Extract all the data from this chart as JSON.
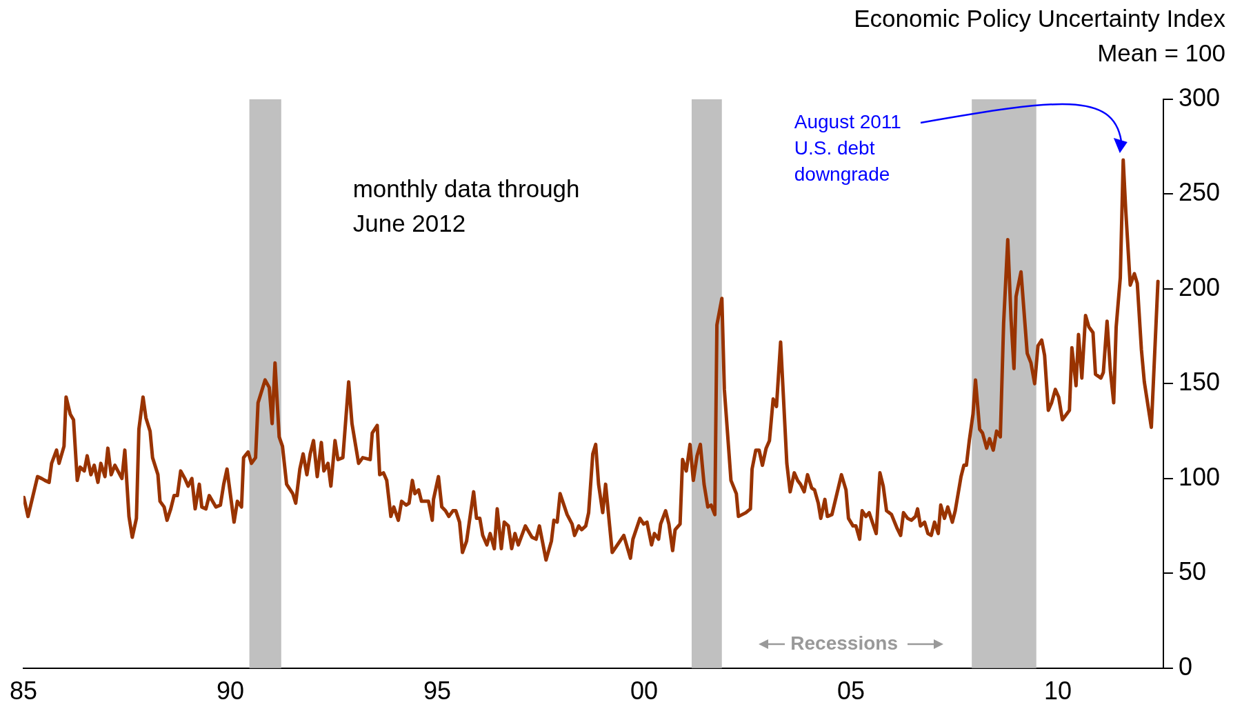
{
  "chart_data": {
    "type": "line",
    "title": "Economic Policy Uncertainty Index",
    "subtitle": "Mean = 100",
    "x": [
      1985.01,
      1985.11,
      1985.34,
      1985.44,
      1985.52,
      1985.62,
      1985.68,
      1985.8,
      1985.86,
      1985.98,
      1986.03,
      1986.13,
      1986.21,
      1986.3,
      1986.37,
      1986.47,
      1986.54,
      1986.63,
      1986.71,
      1986.8,
      1986.87,
      1986.97,
      1987.04,
      1987.12,
      1987.21,
      1987.38,
      1987.45,
      1987.55,
      1987.63,
      1987.73,
      1987.79,
      1987.89,
      1987.96,
      1988.06,
      1988.12,
      1988.25,
      1988.3,
      1988.4,
      1988.47,
      1988.56,
      1988.64,
      1988.72,
      1988.8,
      1988.9,
      1988.98,
      1989.07,
      1989.15,
      1989.25,
      1989.31,
      1989.41,
      1989.49,
      1989.65,
      1989.76,
      1989.84,
      1989.92,
      1990.09,
      1990.17,
      1990.27,
      1990.32,
      1990.43,
      1990.51,
      1990.61,
      1990.67,
      1990.84,
      1990.94,
      1991.01,
      1991.08,
      1991.18,
      1991.26,
      1991.36,
      1991.42,
      1991.51,
      1991.58,
      1991.68,
      1991.76,
      1991.85,
      1991.93,
      1992.01,
      1992.1,
      1992.2,
      1992.26,
      1992.36,
      1992.43,
      1992.53,
      1992.6,
      1992.72,
      1992.86,
      1992.94,
      1993.1,
      1993.2,
      1993.38,
      1993.43,
      1993.55,
      1993.61,
      1993.7,
      1993.78,
      1993.88,
      1993.95,
      1994.06,
      1994.14,
      1994.25,
      1994.32,
      1994.4,
      1994.46,
      1994.55,
      1994.62,
      1994.79,
      1994.88,
      1994.91,
      1995.03,
      1995.11,
      1995.2,
      1995.28,
      1995.38,
      1995.45,
      1995.54,
      1995.61,
      1995.71,
      1995.88,
      1995.95,
      1996.03,
      1996.1,
      1996.2,
      1996.28,
      1996.38,
      1996.45,
      1996.55,
      1996.62,
      1996.72,
      1996.8,
      1996.88,
      1996.96,
      1997.13,
      1997.29,
      1997.39,
      1997.47,
      1997.63,
      1997.76,
      1997.82,
      1997.9,
      1997.97,
      1998.14,
      1998.26,
      1998.32,
      1998.42,
      1998.49,
      1998.59,
      1998.66,
      1998.76,
      1998.83,
      1998.9,
      1999,
      1999.07,
      1999.23,
      1999.51,
      1999.67,
      1999.73,
      1999.9,
      1999.99,
      2000.07,
      2000.18,
      2000.25,
      2000.35,
      2000.4,
      2000.52,
      2000.6,
      2000.69,
      2000.75,
      2000.87,
      2000.93,
      2001.02,
      2001.11,
      2001.19,
      2001.28,
      2001.36,
      2001.45,
      2001.54,
      2001.62,
      2001.71,
      2001.76,
      2001.88,
      2001.94,
      2002.02,
      2002.1,
      2002.23,
      2002.28,
      2002.46,
      2002.57,
      2002.61,
      2002.7,
      2002.78,
      2002.86,
      2002.95,
      2003.03,
      2003.12,
      2003.2,
      2003.3,
      2003.45,
      2003.53,
      2003.63,
      2003.71,
      2003.78,
      2003.87,
      2003.95,
      2004.05,
      2004.12,
      2004.21,
      2004.27,
      2004.37,
      2004.43,
      2004.54,
      2004.77,
      2004.88,
      2004.94,
      2005.05,
      2005.12,
      2005.21,
      2005.27,
      2005.36,
      2005.44,
      2005.61,
      2005.7,
      2005.78,
      2005.86,
      2005.98,
      2006.11,
      2006.2,
      2006.27,
      2006.37,
      2006.46,
      2006.56,
      2006.61,
      2006.68,
      2006.78,
      2006.86,
      2006.94,
      2007.02,
      2007.11,
      2007.17,
      2007.26,
      2007.34,
      2007.45,
      2007.52,
      2007.66,
      2007.73,
      2007.79,
      2007.86,
      2007.95,
      2008.01,
      2008.11,
      2008.18,
      2008.28,
      2008.35,
      2008.44,
      2008.52,
      2008.61,
      2008.69,
      2008.79,
      2008.87,
      2008.94,
      2008.99,
      2009.11,
      2009.26,
      2009.35,
      2009.44,
      2009.52,
      2009.61,
      2009.68,
      2009.77,
      2009.85,
      2009.94,
      2010.02,
      2010.11,
      2010.28,
      2010.34,
      2010.44,
      2010.5,
      2010.58,
      2010.67,
      2010.75,
      2010.85,
      2010.91,
      2011.04,
      2011.1,
      2011.19,
      2011.27,
      2011.35,
      2011.41,
      2011.51,
      2011.58,
      2011.64,
      2011.75,
      2011.85,
      2011.92,
      2012.02,
      2012.09,
      2012.26,
      2012.42
    ],
    "values": [
      90,
      80,
      101,
      100,
      99,
      98,
      108,
      115,
      108,
      117,
      143,
      134,
      131,
      99,
      106,
      104,
      112,
      102,
      107,
      98,
      108,
      101,
      116,
      102,
      107,
      100,
      115,
      80,
      69,
      79,
      126,
      143,
      132,
      125,
      111,
      102,
      88,
      85,
      78,
      84,
      91,
      91,
      104,
      100,
      96,
      100,
      84,
      97,
      85,
      84,
      91,
      85,
      86,
      97,
      105,
      77,
      88,
      85,
      111,
      114,
      108,
      111,
      140,
      152,
      148,
      129,
      161,
      122,
      117,
      97,
      95,
      92,
      87,
      105,
      113,
      102,
      113,
      120,
      101,
      119,
      104,
      108,
      96,
      120,
      110,
      111,
      151,
      129,
      108,
      111,
      110,
      124,
      128,
      102,
      103,
      99,
      80,
      85,
      78,
      88,
      86,
      87,
      99,
      92,
      94,
      88,
      88,
      78,
      89,
      101,
      85,
      83,
      80,
      83,
      83,
      77,
      61,
      67,
      93,
      79,
      79,
      70,
      65,
      71,
      63,
      84,
      63,
      77,
      75,
      63,
      71,
      65,
      75,
      69,
      68,
      75,
      57,
      67,
      78,
      77,
      92,
      81,
      76,
      70,
      75,
      73,
      75,
      82,
      113,
      118,
      97,
      82,
      97,
      61,
      70,
      58,
      68,
      79,
      76,
      77,
      65,
      71,
      68,
      76,
      83,
      76,
      62,
      73,
      76,
      110,
      104,
      118,
      99,
      112,
      118,
      97,
      85,
      86,
      81,
      181,
      195,
      147,
      123,
      99,
      92,
      80,
      82,
      84,
      105,
      115,
      115,
      107,
      116,
      120,
      142,
      138,
      172,
      108,
      93,
      103,
      99,
      97,
      93,
      102,
      95,
      94,
      87,
      79,
      89,
      80,
      81,
      102,
      94,
      79,
      75,
      75,
      68,
      83,
      80,
      82,
      71,
      103,
      96,
      83,
      81,
      74,
      70,
      82,
      79,
      78,
      80,
      84,
      75,
      77,
      71,
      70,
      77,
      71,
      86,
      79,
      85,
      77,
      83,
      101,
      107,
      107,
      120,
      134,
      152,
      126,
      124,
      116,
      121,
      115,
      125,
      122,
      182,
      226,
      184,
      158,
      196,
      209,
      166,
      161,
      150,
      170,
      173,
      165,
      136,
      140,
      147,
      143,
      131,
      136,
      169,
      149,
      176,
      153,
      186,
      180,
      177,
      155,
      153,
      156,
      183,
      157,
      140,
      180,
      206,
      268,
      242,
      202,
      208,
      203,
      168,
      151,
      127,
      204
    ],
    "color": "#993300",
    "xlim": [
      1985,
      2012.55
    ],
    "xticks": [
      {
        "value": 1985,
        "label": "85"
      },
      {
        "value": 1990,
        "label": "90"
      },
      {
        "value": 1995,
        "label": "95"
      },
      {
        "value": 2000,
        "label": "00"
      },
      {
        "value": 2005,
        "label": "05"
      },
      {
        "value": 2010,
        "label": "10"
      }
    ],
    "ylim": [
      0,
      300
    ],
    "yticks": [
      0,
      50,
      100,
      150,
      200,
      250,
      300
    ],
    "grid": false,
    "legend": false,
    "marker": "none",
    "line_style": "solid",
    "bands": [
      {
        "axis": "x",
        "from": 1990.46,
        "to": 1991.23,
        "color": "#c0c0c0"
      },
      {
        "axis": "x",
        "from": 2001.15,
        "to": 2001.88,
        "color": "#c0c0c0"
      },
      {
        "axis": "x",
        "from": 2007.92,
        "to": 2009.48,
        "color": "#c0c0c0"
      }
    ],
    "annotations": [
      "monthly data through\nJune 2012",
      "August 2011\nU.S. debt\ndowngrade",
      "Recessions"
    ]
  }
}
